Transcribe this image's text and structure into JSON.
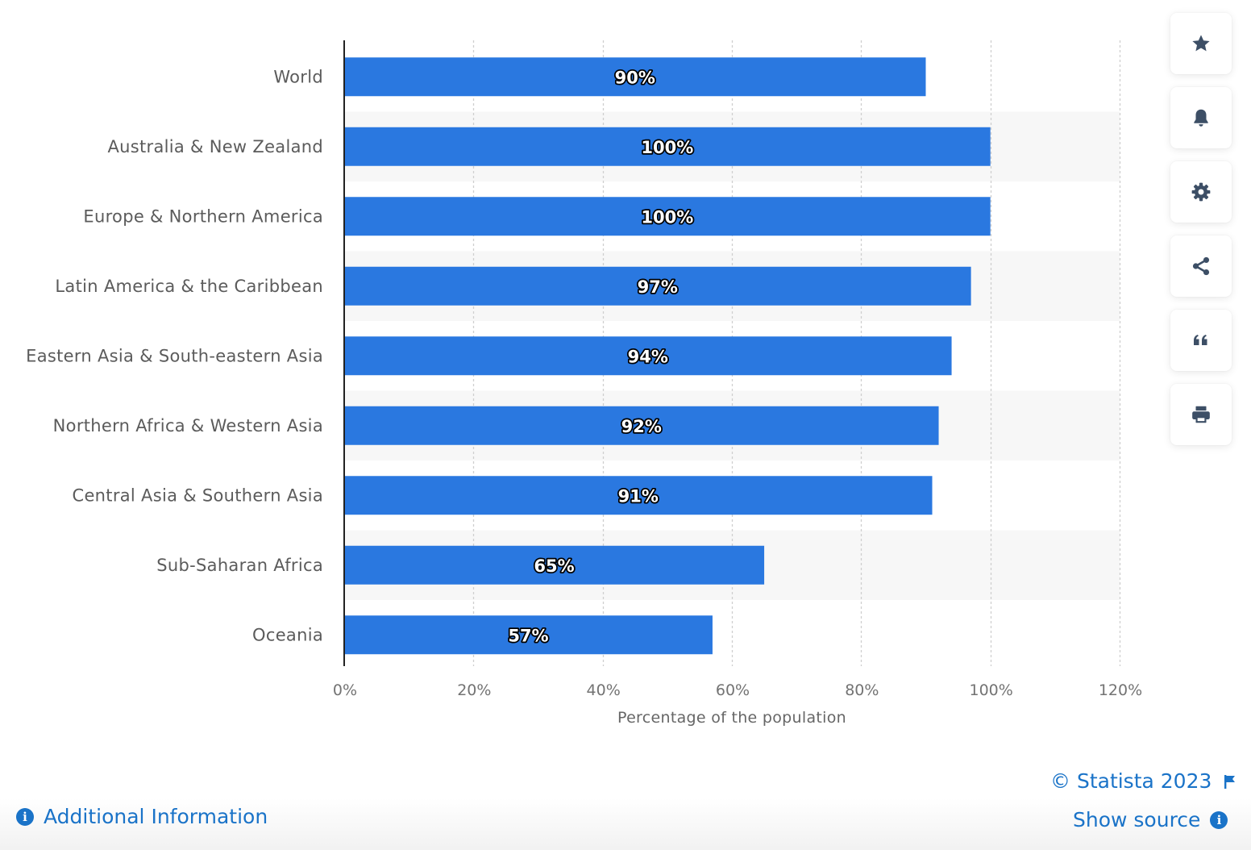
{
  "chart_data": {
    "type": "bar",
    "orientation": "horizontal",
    "categories": [
      "World",
      "Australia & New Zealand",
      "Europe & Northern America",
      "Latin America & the Caribbean",
      "Eastern Asia & South-eastern Asia",
      "Northern Africa & Western Asia",
      "Central Asia & Southern Asia",
      "Sub-Saharan Africa",
      "Oceania"
    ],
    "values": [
      90,
      100,
      100,
      97,
      94,
      92,
      91,
      65,
      57
    ],
    "data_labels": [
      "90%",
      "100%",
      "100%",
      "97%",
      "94%",
      "92%",
      "91%",
      "65%",
      "57%"
    ],
    "xlabel": "Percentage of the population",
    "ylabel": "",
    "xlim": [
      0,
      120
    ],
    "ticks": [
      0,
      20,
      40,
      60,
      80,
      100,
      120
    ],
    "tick_labels": [
      "0%",
      "20%",
      "40%",
      "60%",
      "80%",
      "100%",
      "120%"
    ],
    "grid": true,
    "bar_color": "#2a78e0",
    "band_color": "#f7f7f7"
  },
  "toolbar": {
    "buttons": [
      {
        "name": "star-icon"
      },
      {
        "name": "bell-icon"
      },
      {
        "name": "gear-icon"
      },
      {
        "name": "share-icon"
      },
      {
        "name": "quote-icon"
      },
      {
        "name": "print-icon"
      }
    ]
  },
  "footer": {
    "copyright": "© Statista 2023",
    "show_source": "Show source",
    "additional_info": "Additional Information"
  },
  "colors": {
    "accent": "#1a73c8",
    "icon": "#3d4f66"
  }
}
